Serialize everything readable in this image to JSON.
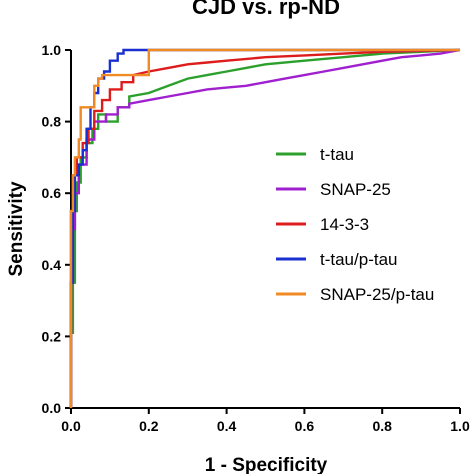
{
  "chart_data": {
    "type": "line",
    "title": "CJD vs. rp-ND",
    "xlabel": "1 - Specificity",
    "ylabel": "Sensitivity",
    "xlim": [
      0,
      1
    ],
    "ylim": [
      0,
      1
    ],
    "x_ticks": [
      "0.0",
      "0.2",
      "0.4",
      "0.6",
      "0.8",
      "1.0"
    ],
    "y_ticks": [
      "0.0",
      "0.2",
      "0.4",
      "0.6",
      "0.8",
      "1.0"
    ],
    "grid": false,
    "legend_position": "right",
    "series": [
      {
        "name": "t-tau",
        "color": "#2ca02c",
        "points": [
          [
            0,
            0
          ],
          [
            0,
            0.21
          ],
          [
            0.005,
            0.21
          ],
          [
            0.005,
            0.35
          ],
          [
            0.01,
            0.35
          ],
          [
            0.01,
            0.55
          ],
          [
            0.015,
            0.55
          ],
          [
            0.015,
            0.63
          ],
          [
            0.025,
            0.63
          ],
          [
            0.025,
            0.7
          ],
          [
            0.04,
            0.7
          ],
          [
            0.04,
            0.74
          ],
          [
            0.055,
            0.74
          ],
          [
            0.055,
            0.78
          ],
          [
            0.07,
            0.78
          ],
          [
            0.07,
            0.82
          ],
          [
            0.09,
            0.82
          ],
          [
            0.09,
            0.8
          ],
          [
            0.12,
            0.8
          ],
          [
            0.12,
            0.84
          ],
          [
            0.15,
            0.84
          ],
          [
            0.15,
            0.87
          ],
          [
            0.2,
            0.88
          ],
          [
            0.25,
            0.9
          ],
          [
            0.3,
            0.92
          ],
          [
            0.35,
            0.93
          ],
          [
            0.4,
            0.94
          ],
          [
            0.45,
            0.95
          ],
          [
            0.5,
            0.96
          ],
          [
            0.6,
            0.97
          ],
          [
            0.7,
            0.98
          ],
          [
            0.8,
            0.99
          ],
          [
            0.9,
            0.995
          ],
          [
            1,
            1
          ]
        ]
      },
      {
        "name": "SNAP-25",
        "color": "#a020d0",
        "points": [
          [
            0,
            0
          ],
          [
            0,
            0.35
          ],
          [
            0.005,
            0.35
          ],
          [
            0.005,
            0.5
          ],
          [
            0.01,
            0.5
          ],
          [
            0.01,
            0.6
          ],
          [
            0.02,
            0.6
          ],
          [
            0.02,
            0.68
          ],
          [
            0.04,
            0.68
          ],
          [
            0.04,
            0.75
          ],
          [
            0.06,
            0.75
          ],
          [
            0.06,
            0.8
          ],
          [
            0.09,
            0.8
          ],
          [
            0.09,
            0.82
          ],
          [
            0.12,
            0.82
          ],
          [
            0.12,
            0.84
          ],
          [
            0.15,
            0.84
          ],
          [
            0.15,
            0.85
          ],
          [
            0.2,
            0.86
          ],
          [
            0.25,
            0.87
          ],
          [
            0.3,
            0.88
          ],
          [
            0.35,
            0.89
          ],
          [
            0.4,
            0.895
          ],
          [
            0.45,
            0.9
          ],
          [
            0.5,
            0.91
          ],
          [
            0.55,
            0.92
          ],
          [
            0.6,
            0.93
          ],
          [
            0.65,
            0.94
          ],
          [
            0.7,
            0.95
          ],
          [
            0.75,
            0.96
          ],
          [
            0.8,
            0.97
          ],
          [
            0.85,
            0.98
          ],
          [
            0.9,
            0.985
          ],
          [
            0.95,
            0.99
          ],
          [
            1,
            1
          ]
        ]
      },
      {
        "name": "14-3-3",
        "color": "#dd1c1c",
        "points": [
          [
            0,
            0
          ],
          [
            0,
            0.55
          ],
          [
            0.005,
            0.55
          ],
          [
            0.005,
            0.65
          ],
          [
            0.015,
            0.65
          ],
          [
            0.015,
            0.7
          ],
          [
            0.03,
            0.7
          ],
          [
            0.03,
            0.74
          ],
          [
            0.045,
            0.74
          ],
          [
            0.045,
            0.78
          ],
          [
            0.06,
            0.78
          ],
          [
            0.06,
            0.83
          ],
          [
            0.08,
            0.83
          ],
          [
            0.08,
            0.86
          ],
          [
            0.1,
            0.86
          ],
          [
            0.1,
            0.89
          ],
          [
            0.13,
            0.89
          ],
          [
            0.13,
            0.91
          ],
          [
            0.16,
            0.91
          ],
          [
            0.16,
            0.93
          ],
          [
            0.2,
            0.94
          ],
          [
            0.25,
            0.95
          ],
          [
            0.3,
            0.96
          ],
          [
            0.35,
            0.965
          ],
          [
            0.4,
            0.97
          ],
          [
            0.5,
            0.98
          ],
          [
            0.6,
            0.985
          ],
          [
            0.7,
            0.99
          ],
          [
            0.8,
            0.995
          ],
          [
            1,
            1
          ]
        ]
      },
      {
        "name": "t-tau/p-tau",
        "color": "#1a2fcf",
        "points": [
          [
            0,
            0
          ],
          [
            0,
            0.35
          ],
          [
            0.005,
            0.35
          ],
          [
            0.005,
            0.55
          ],
          [
            0.01,
            0.55
          ],
          [
            0.01,
            0.65
          ],
          [
            0.02,
            0.65
          ],
          [
            0.02,
            0.68
          ],
          [
            0.03,
            0.68
          ],
          [
            0.03,
            0.72
          ],
          [
            0.04,
            0.72
          ],
          [
            0.04,
            0.78
          ],
          [
            0.05,
            0.78
          ],
          [
            0.05,
            0.84
          ],
          [
            0.06,
            0.84
          ],
          [
            0.06,
            0.88
          ],
          [
            0.07,
            0.88
          ],
          [
            0.07,
            0.92
          ],
          [
            0.085,
            0.92
          ],
          [
            0.085,
            0.94
          ],
          [
            0.1,
            0.94
          ],
          [
            0.1,
            0.97
          ],
          [
            0.12,
            0.97
          ],
          [
            0.12,
            0.99
          ],
          [
            0.135,
            0.99
          ],
          [
            0.135,
            1
          ],
          [
            1,
            1
          ]
        ]
      },
      {
        "name": "SNAP-25/p-tau",
        "color": "#f08a24",
        "points": [
          [
            0,
            0
          ],
          [
            0,
            0.55
          ],
          [
            0.005,
            0.55
          ],
          [
            0.005,
            0.65
          ],
          [
            0.01,
            0.65
          ],
          [
            0.01,
            0.7
          ],
          [
            0.02,
            0.7
          ],
          [
            0.02,
            0.75
          ],
          [
            0.025,
            0.75
          ],
          [
            0.025,
            0.84
          ],
          [
            0.06,
            0.84
          ],
          [
            0.06,
            0.9
          ],
          [
            0.07,
            0.9
          ],
          [
            0.07,
            0.92
          ],
          [
            0.08,
            0.92
          ],
          [
            0.08,
            0.93
          ],
          [
            0.2,
            0.93
          ],
          [
            0.2,
            1
          ],
          [
            1,
            1
          ]
        ]
      }
    ]
  }
}
